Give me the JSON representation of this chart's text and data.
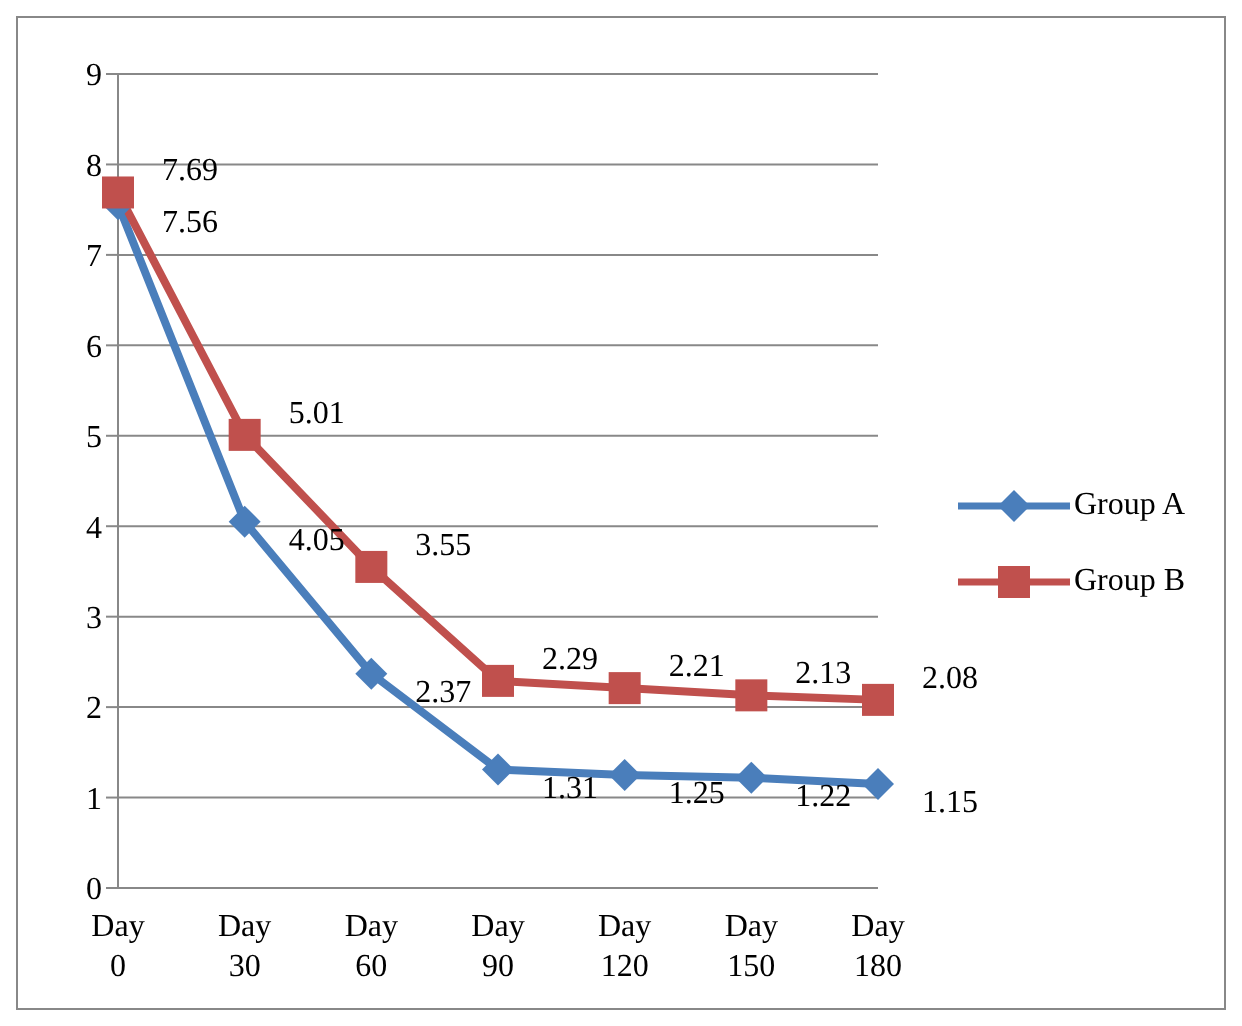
{
  "chart_data": {
    "type": "line",
    "categories": [
      "Day 0",
      "Day 30",
      "Day 60",
      "Day 90",
      "Day 120",
      "Day 150",
      "Day 180"
    ],
    "series": [
      {
        "name": "Group A",
        "color": "#4a7ebb",
        "marker": "diamond",
        "values": [
          7.56,
          4.05,
          2.37,
          1.31,
          1.25,
          1.22,
          1.15
        ]
      },
      {
        "name": "Group B",
        "color": "#c0504d",
        "marker": "square",
        "values": [
          7.69,
          5.01,
          3.55,
          2.29,
          2.21,
          2.13,
          2.08
        ]
      }
    ],
    "ylim": [
      0,
      9
    ],
    "yticks": [
      0,
      1,
      2,
      3,
      4,
      5,
      6,
      7,
      8,
      9
    ],
    "grid": "y",
    "legend": "right",
    "data_labels": true
  }
}
